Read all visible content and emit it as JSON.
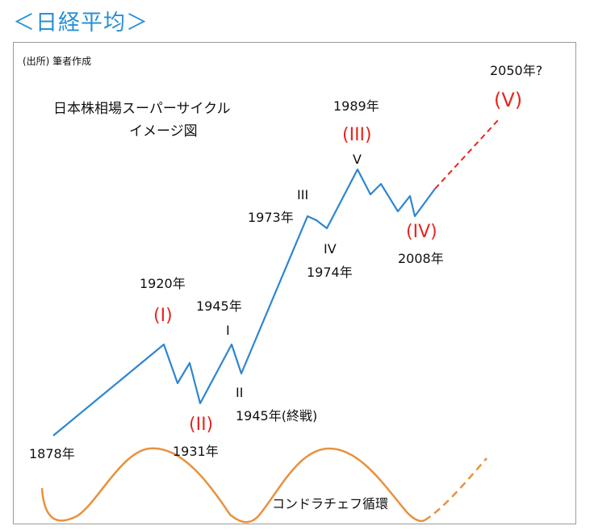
{
  "title": "＜日経平均＞",
  "source_note": "(出所) 筆者作成",
  "heading_line1": "日本株相場スーパーサイクル",
  "heading_line2": "イメージ図",
  "kondratiev_label": "コンドラチェフ循環",
  "colors": {
    "title": "#2a8fd6",
    "wave": "#2e86d1",
    "roman": "#e8251f",
    "cycle": "#e9913e"
  },
  "labels": {
    "y1878": "1878年",
    "y1920": "1920年",
    "y1931": "1931年",
    "y1945a": "1945年",
    "y1945b": "1945年(終戦)",
    "y1973": "1973年",
    "y1974": "1974年",
    "y1989": "1989年",
    "y2008": "2008年",
    "y2050": "2050年?"
  },
  "waves_major": {
    "w1": "(I)",
    "w2": "(II)",
    "w3": "(III)",
    "w4": "(IV)",
    "w5": "(V)"
  },
  "waves_minor": {
    "m1": "I",
    "m2": "II",
    "m3": "III",
    "m4": "IV",
    "m5": "V"
  }
}
